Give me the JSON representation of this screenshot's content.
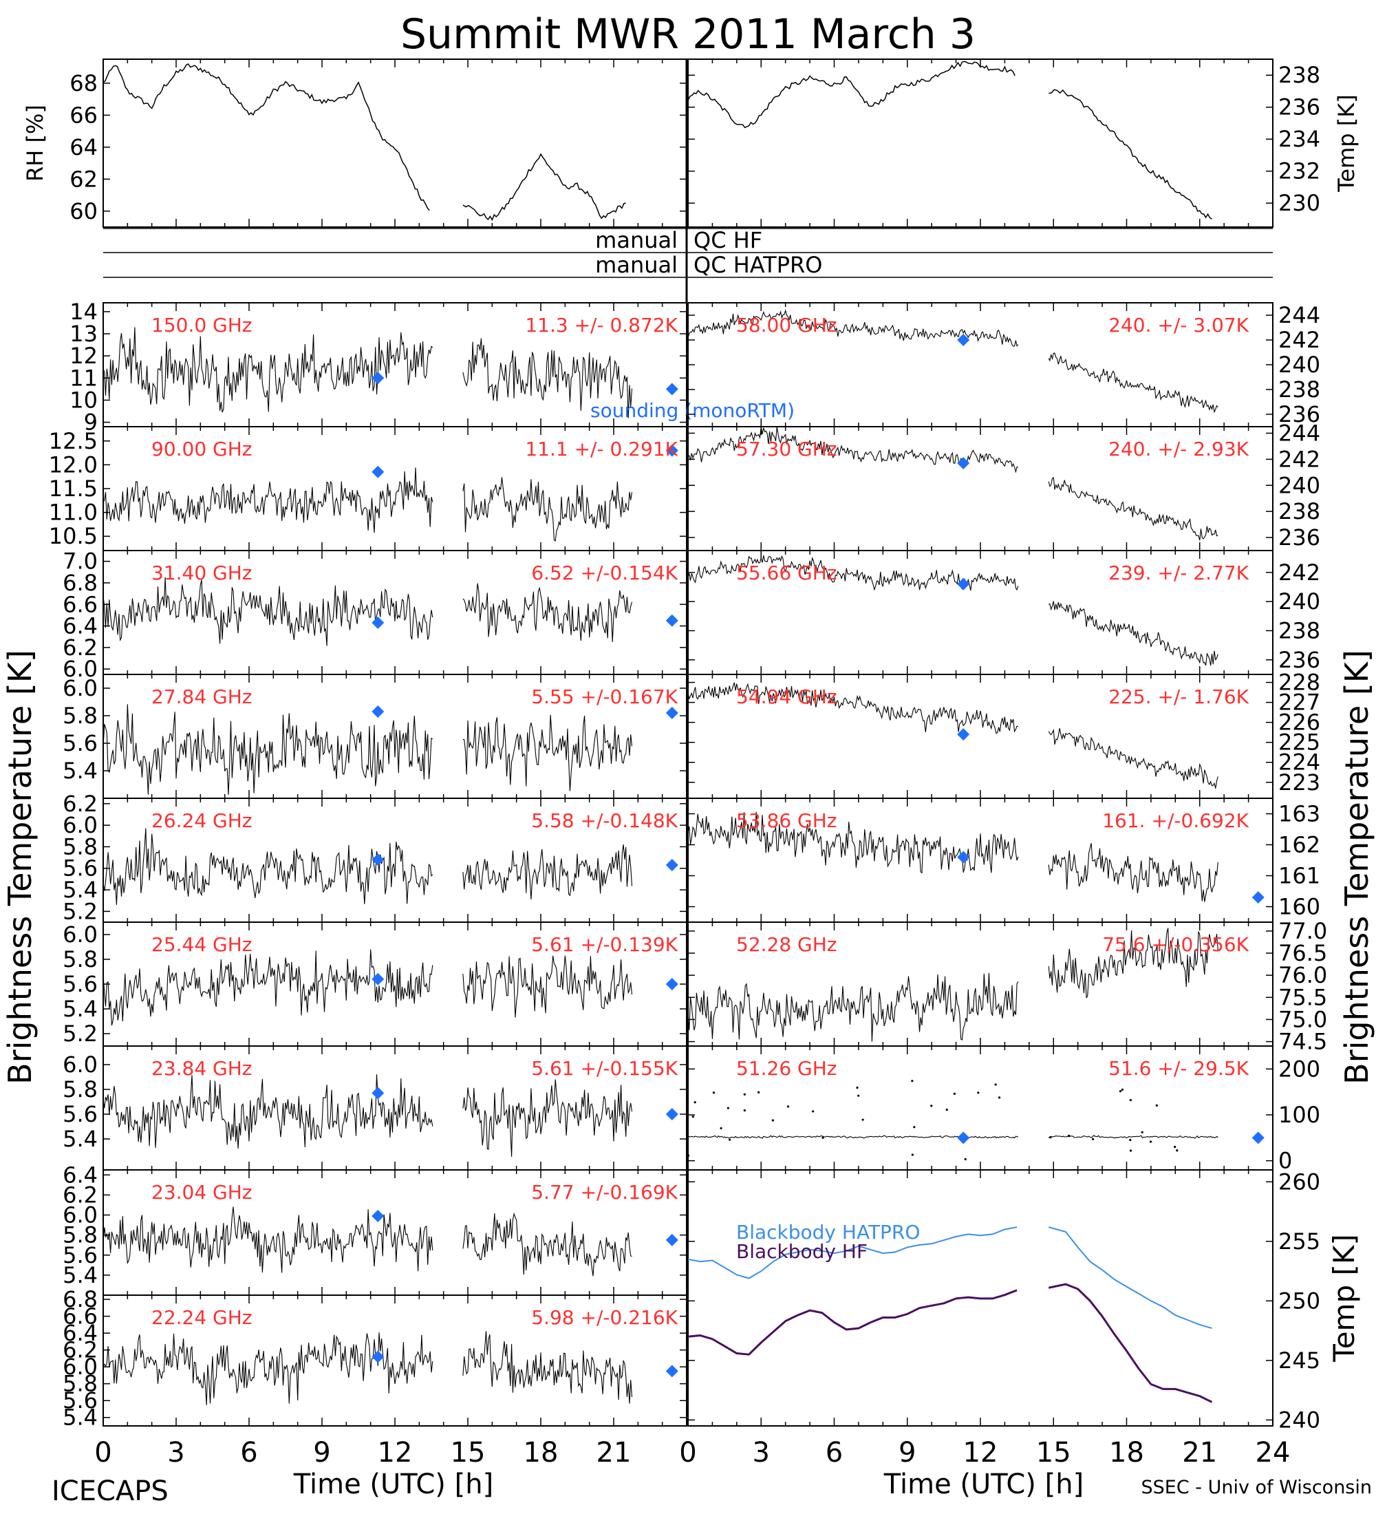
{
  "figure": {
    "title": "Summit MWR 2011 March  3",
    "footer_left": "ICECAPS",
    "footer_right": "SSEC - Univ of Wisconsin",
    "xlabel": "Time (UTC) [h]",
    "ylabel_left": "Brightness Temperature [K]",
    "ylabel_right": "Brightness Temperature [K]",
    "qc_rows": [
      {
        "left": "manual",
        "right": "QC HF"
      },
      {
        "left": "manual",
        "right": "QC HATPRO"
      }
    ],
    "sounding_label": "sounding (monoRTM)",
    "colors": {
      "trace": "#000000",
      "annotation": "#ff3030",
      "sounding": "#1f6fff",
      "bb_hatpro": "#3a8fe8",
      "bb_hf": "#4b1060"
    }
  },
  "chart_data": [
    {
      "id": "rh",
      "type": "line",
      "ylabel": "RH [%]",
      "xlim": [
        0,
        24
      ],
      "ylim": [
        59,
        69.5
      ],
      "yticks": [
        60,
        62,
        64,
        66,
        68
      ],
      "x": [
        0,
        0.5,
        1,
        1.5,
        2,
        2.5,
        3,
        3.5,
        4,
        4.5,
        5,
        5.5,
        6,
        6.5,
        7,
        7.5,
        8,
        8.5,
        9,
        9.5,
        10,
        10.5,
        11,
        11.5,
        12,
        12.5,
        13,
        13.5,
        14.8,
        15.5,
        16,
        16.5,
        17,
        17.5,
        18,
        18.5,
        19,
        19.5,
        20,
        20.5,
        21,
        21.5
      ],
      "y": [
        68,
        69.2,
        67.5,
        67,
        66.5,
        67.8,
        68.6,
        69.1,
        68.9,
        68.5,
        68,
        67,
        66,
        66.5,
        67.5,
        68,
        67.6,
        67.2,
        66.8,
        67,
        67,
        68,
        66,
        64.5,
        64,
        62.5,
        61,
        60,
        60.5,
        59.8,
        59.5,
        60.2,
        61.2,
        62.5,
        63.5,
        62.5,
        61.5,
        61.6,
        61,
        59.5,
        60,
        60.5
      ]
    },
    {
      "id": "temp",
      "type": "line",
      "ylabel": "Temp [K]",
      "xlim": [
        0,
        24
      ],
      "ylim": [
        228.5,
        239
      ],
      "yticks": [
        230,
        232,
        234,
        236,
        238
      ],
      "x": [
        0,
        0.5,
        1,
        1.5,
        2,
        2.5,
        3,
        3.5,
        4,
        4.5,
        5,
        5.5,
        6,
        6.5,
        7,
        7.5,
        8,
        8.5,
        9,
        9.5,
        10,
        10.5,
        11,
        11.5,
        12,
        12.5,
        13,
        13.5,
        14.8,
        15.5,
        16,
        16.5,
        17,
        17.5,
        18,
        18.5,
        19,
        19.5,
        20,
        20.5,
        21,
        21.5
      ],
      "y": [
        236.5,
        237,
        236.5,
        235.8,
        235,
        234.8,
        235.5,
        236.5,
        237.2,
        237.5,
        237.8,
        237.6,
        237.4,
        237.8,
        236.8,
        236,
        236.5,
        237.2,
        237.4,
        237.6,
        237.8,
        238.3,
        238.6,
        238.9,
        238.6,
        238.4,
        238.4,
        238.0,
        237.0,
        236.9,
        236.5,
        235.8,
        235.0,
        234.3,
        233.5,
        232.6,
        232,
        231.5,
        230.8,
        230.2,
        229.5,
        229
      ]
    },
    {
      "id": "L1",
      "type": "scatter",
      "label": "150.0 GHz",
      "stats": "11.3 +/- 0.872K",
      "ylim": [
        8.8,
        14.4
      ],
      "yticks": [
        9,
        10,
        11,
        12,
        13,
        14
      ],
      "level": 11.3,
      "noise": 0.87,
      "trend": [
        0,
        0,
        0,
        0,
        -0.5
      ],
      "sounding": [
        [
          11.3,
          11.0
        ],
        [
          23.4,
          10.5
        ]
      ]
    },
    {
      "id": "L2",
      "type": "scatter",
      "label": "90.00 GHz",
      "stats": "11.1 +/- 0.291K",
      "ylim": [
        10.2,
        12.8
      ],
      "yticks": [
        10.5,
        11.0,
        11.5,
        12.0,
        12.5
      ],
      "level": 11.25,
      "noise": 0.29,
      "trend": [
        0,
        0,
        0,
        0,
        -0.1
      ],
      "sounding": [
        [
          11.3,
          11.85
        ],
        [
          23.4,
          12.3
        ]
      ]
    },
    {
      "id": "L3",
      "type": "scatter",
      "label": "31.40 GHz",
      "stats": "6.52 +/-0.154K",
      "ylim": [
        5.95,
        7.1
      ],
      "yticks": [
        6.0,
        6.2,
        6.4,
        6.6,
        6.8,
        7.0
      ],
      "level": 6.52,
      "noise": 0.15,
      "trend": [
        0,
        0,
        0,
        0,
        0
      ],
      "sounding": [
        [
          11.3,
          6.43
        ],
        [
          23.4,
          6.45
        ]
      ]
    },
    {
      "id": "L4",
      "type": "scatter",
      "label": "27.84 GHz",
      "stats": "5.55 +/-0.167K",
      "ylim": [
        5.2,
        6.1
      ],
      "yticks": [
        5.4,
        5.6,
        5.8,
        6.0
      ],
      "level": 5.55,
      "noise": 0.16,
      "trend": [
        0,
        0,
        0,
        0,
        0
      ],
      "sounding": [
        [
          11.3,
          5.83
        ],
        [
          23.4,
          5.82
        ]
      ]
    },
    {
      "id": "L5",
      "type": "scatter",
      "label": "26.24 GHz",
      "stats": "5.58 +/-0.148K",
      "ylim": [
        5.1,
        6.25
      ],
      "yticks": [
        5.2,
        5.4,
        5.6,
        5.8,
        6.0,
        6.2
      ],
      "level": 5.58,
      "noise": 0.15,
      "trend": [
        0,
        0,
        0,
        0,
        0
      ],
      "sounding": [
        [
          11.3,
          5.68
        ],
        [
          23.4,
          5.63
        ]
      ]
    },
    {
      "id": "L6",
      "type": "scatter",
      "label": "25.44 GHz",
      "stats": "5.61 +/-0.139K",
      "ylim": [
        5.1,
        6.1
      ],
      "yticks": [
        5.2,
        5.4,
        5.6,
        5.8,
        6.0
      ],
      "level": 5.61,
      "noise": 0.14,
      "trend": [
        0,
        0,
        0,
        0,
        0
      ],
      "sounding": [
        [
          11.3,
          5.64
        ],
        [
          23.4,
          5.6
        ]
      ]
    },
    {
      "id": "L7",
      "type": "scatter",
      "label": "23.84 GHz",
      "stats": "5.61 +/-0.155K",
      "ylim": [
        5.15,
        6.15
      ],
      "yticks": [
        5.4,
        5.6,
        5.8,
        6.0
      ],
      "level": 5.61,
      "noise": 0.15,
      "trend": [
        0,
        0,
        0,
        0,
        -0.05
      ],
      "sounding": [
        [
          11.3,
          5.77
        ],
        [
          23.4,
          5.6
        ]
      ]
    },
    {
      "id": "L8",
      "type": "scatter",
      "label": "23.04 GHz",
      "stats": "5.77 +/-0.169K",
      "ylim": [
        5.2,
        6.45
      ],
      "yticks": [
        5.4,
        5.6,
        5.8,
        6.0,
        6.2,
        6.4
      ],
      "level": 5.77,
      "noise": 0.16,
      "trend": [
        0,
        0,
        0,
        0,
        -0.1
      ],
      "sounding": [
        [
          11.3,
          5.99
        ],
        [
          23.4,
          5.75
        ]
      ]
    },
    {
      "id": "L9",
      "type": "scatter",
      "label": "22.24 GHz",
      "stats": "5.98 +/-0.216K",
      "ylim": [
        5.3,
        6.85
      ],
      "yticks": [
        5.4,
        5.6,
        5.8,
        6.0,
        6.2,
        6.4,
        6.6,
        6.8
      ],
      "level": 6.05,
      "noise": 0.2,
      "trend": [
        0,
        0,
        0,
        0,
        -0.15
      ],
      "sounding": [
        [
          11.3,
          6.12
        ],
        [
          23.4,
          5.95
        ]
      ]
    },
    {
      "id": "R1",
      "type": "scatter",
      "label": "58.00 GHz",
      "stats": "240. +/- 3.07K",
      "ylim": [
        235,
        245
      ],
      "yticks": [
        236,
        238,
        240,
        242,
        244
      ],
      "level": 240,
      "noise": 0.35,
      "trend": [
        242.5,
        244,
        243,
        242.5,
        242.5,
        240,
        238,
        236.5
      ],
      "sounding": [
        [
          11.3,
          242
        ]
      ]
    },
    {
      "id": "R2",
      "type": "scatter",
      "label": "57.30 GHz",
      "stats": "240. +/- 2.93K",
      "ylim": [
        235,
        244.5
      ],
      "yticks": [
        236,
        238,
        240,
        242,
        244
      ],
      "level": 240,
      "noise": 0.35,
      "trend": [
        242,
        244,
        242.5,
        242.2,
        242.2,
        239.6,
        237.7,
        236
      ],
      "sounding": [
        [
          11.3,
          241.7
        ]
      ]
    },
    {
      "id": "R3",
      "type": "scatter",
      "label": "55.66 GHz",
      "stats": "239. +/- 2.77K",
      "ylim": [
        235,
        243.5
      ],
      "yticks": [
        236,
        238,
        240,
        242
      ],
      "level": 239,
      "noise": 0.35,
      "trend": [
        241.8,
        243,
        241.8,
        241.6,
        241.5,
        239.2,
        237.4,
        235.9
      ],
      "sounding": [
        [
          11.3,
          241.2
        ]
      ]
    },
    {
      "id": "R4",
      "type": "scatter",
      "label": "54.94 GHz",
      "stats": "225. +/- 1.76K",
      "ylim": [
        222.2,
        228.4
      ],
      "yticks": [
        223,
        224,
        225,
        226,
        227,
        228
      ],
      "level": 225,
      "noise": 0.3,
      "trend": [
        227.5,
        227.6,
        227,
        226.5,
        226,
        225.2,
        224,
        223
      ],
      "sounding": [
        [
          11.3,
          225.4
        ]
      ]
    },
    {
      "id": "R5",
      "type": "scatter",
      "label": "53.86 GHz",
      "stats": "161. +/-0.692K",
      "ylim": [
        159.5,
        163.5
      ],
      "yticks": [
        160,
        161,
        162,
        163
      ],
      "level": 161,
      "noise": 0.4,
      "trend": [
        162.5,
        162.3,
        162.0,
        161.8,
        161.7,
        161.5,
        161.1,
        160.8
      ],
      "sounding": [
        [
          11.3,
          161.6
        ],
        [
          23.4,
          160.3
        ]
      ]
    },
    {
      "id": "R6",
      "type": "scatter",
      "label": "52.28 GHz",
      "stats": "75.6 +/-0.356K",
      "ylim": [
        74.4,
        77.2
      ],
      "yticks": [
        74.5,
        75.0,
        75.5,
        76.0,
        76.5,
        77.0
      ],
      "level": 75.6,
      "noise": 0.35,
      "trend": [
        75.3,
        75.2,
        75.3,
        75.4,
        75.6,
        76.0,
        76.3,
        76.5
      ],
      "sounding": []
    },
    {
      "id": "R7",
      "type": "scatter",
      "label": "51.26 GHz",
      "stats": "51.6 +/- 29.5K",
      "ylim": [
        -20,
        250
      ],
      "yticks": [
        0,
        100,
        200
      ],
      "level": 52,
      "noise": 1.5,
      "trend": [
        52,
        52,
        52,
        52,
        52
      ],
      "spikes": true,
      "sounding": [
        [
          11.3,
          50
        ],
        [
          23.4,
          50
        ]
      ]
    },
    {
      "id": "BB",
      "type": "line",
      "ylabel": "Temp [K]",
      "ylim": [
        239.5,
        261
      ],
      "yticks": [
        240,
        245,
        250,
        255,
        260
      ],
      "series": [
        {
          "name": "Blackbody HATPRO",
          "x": [
            0,
            0.5,
            1,
            1.5,
            2,
            2.5,
            3,
            3.5,
            4,
            4.5,
            5,
            5.5,
            6,
            6.5,
            7,
            7.5,
            8,
            8.5,
            9,
            9.5,
            10,
            10.5,
            11,
            11.5,
            12,
            12.5,
            13,
            13.5,
            14.8,
            15.5,
            16,
            16.5,
            17,
            17.5,
            18,
            18.5,
            19,
            19.5,
            20,
            20.5,
            21,
            21.5
          ],
          "y": [
            253.5,
            253.3,
            253.4,
            252.8,
            252.2,
            251.9,
            252.5,
            253.3,
            253.9,
            254.1,
            254.3,
            254.2,
            254.0,
            254.2,
            254.6,
            254.3,
            254.0,
            254.1,
            254.5,
            254.7,
            254.8,
            255.1,
            255.4,
            255.6,
            255.5,
            255.6,
            256.0,
            256.2,
            256.2,
            255.8,
            254.5,
            253.3,
            252.6,
            251.8,
            251.2,
            250.6,
            250.0,
            249.5,
            248.8,
            248.4,
            248.0,
            247.7
          ]
        },
        {
          "name": "Blackbody HF",
          "x": [
            0,
            0.5,
            1,
            1.5,
            2,
            2.5,
            3,
            3.5,
            4,
            4.5,
            5,
            5.5,
            6,
            6.5,
            7,
            7.5,
            8,
            8.5,
            9,
            9.5,
            10,
            10.5,
            11,
            11.5,
            12,
            12.5,
            13,
            13.5,
            14.8,
            15.5,
            16,
            16.5,
            17,
            17.5,
            18,
            18.5,
            19,
            19.5,
            20,
            20.5,
            21,
            21.5
          ],
          "y": [
            247.0,
            247.1,
            246.8,
            246.2,
            245.6,
            245.5,
            246.5,
            247.4,
            248.3,
            248.8,
            249.2,
            249.0,
            248.2,
            247.6,
            247.7,
            248.2,
            248.6,
            248.6,
            248.9,
            249.4,
            249.6,
            249.8,
            250.2,
            250.3,
            250.2,
            250.2,
            250.5,
            250.9,
            251.1,
            251.4,
            251.0,
            250.0,
            248.7,
            247.2,
            245.8,
            244.3,
            243.0,
            242.6,
            242.6,
            242.3,
            242.0,
            241.5
          ]
        }
      ]
    }
  ],
  "x_axis": {
    "ticks_left": [
      0,
      3,
      6,
      9,
      12,
      15,
      18,
      21
    ],
    "ticks_right": [
      0,
      3,
      6,
      9,
      12,
      15,
      18,
      21,
      24
    ]
  }
}
